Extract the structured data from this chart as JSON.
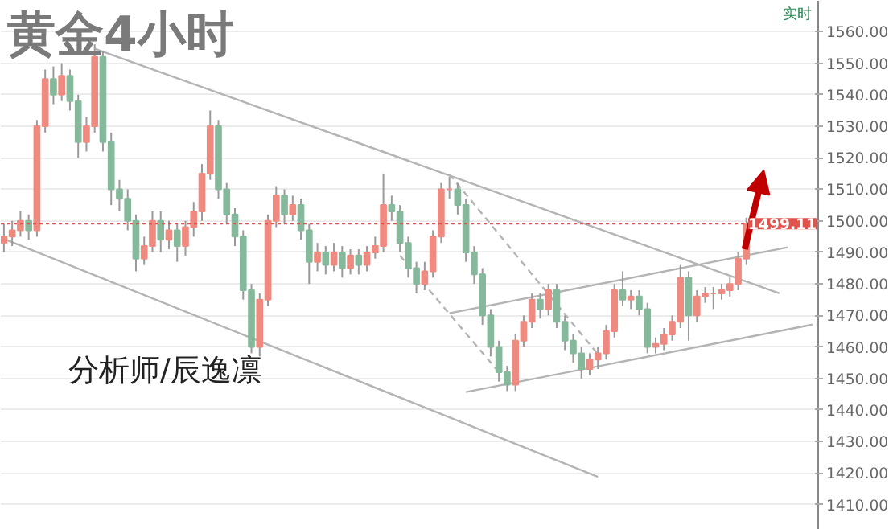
{
  "chart_data": {
    "type": "candlestick",
    "title": "黄金4小时",
    "categories": [
      null,
      null,
      null,
      null,
      null,
      null,
      null,
      null,
      null,
      null,
      null,
      null,
      null,
      null,
      null,
      null,
      null,
      null,
      null,
      null,
      null,
      null,
      null,
      null,
      null,
      null,
      null,
      null,
      null,
      null,
      null,
      null,
      null,
      null,
      null,
      null,
      null,
      null,
      null,
      null,
      null,
      null,
      null,
      null,
      null,
      null,
      null,
      null,
      null,
      null,
      null,
      null,
      null,
      null,
      null,
      null,
      null,
      null,
      null,
      null,
      null,
      null,
      null,
      null,
      null,
      null,
      null,
      null,
      null,
      null,
      null,
      null,
      null,
      null,
      null,
      null,
      null,
      null,
      null,
      null,
      null,
      null,
      null,
      null,
      null,
      null,
      null,
      null,
      null,
      null,
      null,
      null,
      null,
      null,
      null,
      null,
      null,
      null,
      null
    ],
    "ohlc": [
      [
        1493,
        1499,
        1490,
        1495
      ],
      [
        1495,
        1500,
        1492,
        1497
      ],
      [
        1497,
        1503,
        1495,
        1500
      ],
      [
        1500,
        1502,
        1494,
        1497
      ],
      [
        1497,
        1532,
        1495,
        1530
      ],
      [
        1530,
        1548,
        1528,
        1545
      ],
      [
        1545,
        1549,
        1537,
        1540
      ],
      [
        1540,
        1550,
        1538,
        1546
      ],
      [
        1546,
        1548,
        1535,
        1538
      ],
      [
        1538,
        1540,
        1520,
        1525
      ],
      [
        1525,
        1533,
        1522,
        1530
      ],
      [
        1530,
        1556,
        1528,
        1552
      ],
      [
        1552,
        1554,
        1522,
        1525
      ],
      [
        1525,
        1528,
        1505,
        1510
      ],
      [
        1510,
        1513,
        1503,
        1507
      ],
      [
        1507,
        1510,
        1497,
        1500
      ],
      [
        1500,
        1502,
        1484,
        1488
      ],
      [
        1488,
        1495,
        1486,
        1492
      ],
      [
        1492,
        1503,
        1490,
        1500
      ],
      [
        1500,
        1503,
        1490,
        1494
      ],
      [
        1494,
        1500,
        1491,
        1497
      ],
      [
        1497,
        1499,
        1487,
        1492
      ],
      [
        1492,
        1500,
        1489,
        1498
      ],
      [
        1498,
        1506,
        1495,
        1503
      ],
      [
        1503,
        1518,
        1500,
        1515
      ],
      [
        1515,
        1535,
        1513,
        1530
      ],
      [
        1530,
        1532,
        1507,
        1510
      ],
      [
        1510,
        1512,
        1499,
        1502
      ],
      [
        1502,
        1504,
        1492,
        1495
      ],
      [
        1495,
        1497,
        1475,
        1478
      ],
      [
        1478,
        1480,
        1458,
        1460
      ],
      [
        1460,
        1477,
        1457,
        1475
      ],
      [
        1475,
        1502,
        1473,
        1500
      ],
      [
        1500,
        1511,
        1498,
        1508
      ],
      [
        1508,
        1510,
        1499,
        1502
      ],
      [
        1502,
        1508,
        1500,
        1505
      ],
      [
        1505,
        1507,
        1494,
        1497
      ],
      [
        1497,
        1499,
        1480,
        1487
      ],
      [
        1487,
        1493,
        1484,
        1490
      ],
      [
        1490,
        1492,
        1483,
        1486
      ],
      [
        1486,
        1493,
        1484,
        1490
      ],
      [
        1490,
        1492,
        1482,
        1485
      ],
      [
        1485,
        1491,
        1483,
        1489
      ],
      [
        1489,
        1491,
        1483,
        1486
      ],
      [
        1486,
        1492,
        1484,
        1490
      ],
      [
        1490,
        1495,
        1488,
        1492
      ],
      [
        1492,
        1515,
        1490,
        1505
      ],
      [
        1505,
        1508,
        1500,
        1503
      ],
      [
        1503,
        1505,
        1490,
        1493
      ],
      [
        1493,
        1495,
        1482,
        1485
      ],
      [
        1485,
        1487,
        1477,
        1480
      ],
      [
        1480,
        1487,
        1478,
        1484
      ],
      [
        1484,
        1497,
        1482,
        1495
      ],
      [
        1495,
        1512,
        1493,
        1510
      ],
      [
        1510,
        1514,
        1507,
        1510
      ],
      [
        1510,
        1512,
        1502,
        1505
      ],
      [
        1505,
        1507,
        1487,
        1490
      ],
      [
        1490,
        1492,
        1480,
        1483
      ],
      [
        1483,
        1485,
        1467,
        1470
      ],
      [
        1470,
        1472,
        1457,
        1460
      ],
      [
        1460,
        1462,
        1449,
        1452
      ],
      [
        1452,
        1454,
        1446,
        1448
      ],
      [
        1448,
        1464,
        1446,
        1462
      ],
      [
        1462,
        1470,
        1460,
        1468
      ],
      [
        1468,
        1477,
        1466,
        1475
      ],
      [
        1475,
        1477,
        1469,
        1472
      ],
      [
        1472,
        1480,
        1470,
        1478
      ],
      [
        1478,
        1480,
        1466,
        1468
      ],
      [
        1468,
        1470,
        1459,
        1462
      ],
      [
        1462,
        1464,
        1455,
        1458
      ],
      [
        1458,
        1460,
        1450,
        1453
      ],
      [
        1453,
        1458,
        1451,
        1456
      ],
      [
        1456,
        1460,
        1453,
        1458
      ],
      [
        1458,
        1467,
        1456,
        1465
      ],
      [
        1465,
        1480,
        1463,
        1478
      ],
      [
        1478,
        1484,
        1473,
        1475
      ],
      [
        1475,
        1478,
        1472,
        1476
      ],
      [
        1476,
        1478,
        1470,
        1472
      ],
      [
        1472,
        1474,
        1458,
        1460
      ],
      [
        1460,
        1463,
        1458,
        1461
      ],
      [
        1461,
        1466,
        1459,
        1464
      ],
      [
        1464,
        1470,
        1462,
        1468
      ],
      [
        1468,
        1486,
        1466,
        1482
      ],
      [
        1482,
        1484,
        1462,
        1470
      ],
      [
        1470,
        1478,
        1468,
        1476
      ],
      [
        1476,
        1479,
        1474,
        1477
      ],
      [
        1477,
        1479,
        1472,
        1477
      ],
      [
        1477,
        1480,
        1475,
        1478
      ],
      [
        1478,
        1482,
        1476,
        1480
      ],
      [
        1480,
        1490,
        1478,
        1488
      ],
      [
        1488,
        1501,
        1486,
        1499
      ],
      null,
      null,
      null,
      null,
      null,
      null,
      null,
      null
    ],
    "series": [
      {
        "type": "line",
        "color": "#b4b4b4",
        "values": [
          null,
          null,
          null,
          null,
          null,
          null,
          null,
          null,
          null,
          null,
          null,
          1554.6,
          null,
          null,
          null,
          null,
          null,
          null,
          null,
          null,
          null,
          null,
          null,
          null,
          null,
          null,
          null,
          null,
          null,
          null,
          null,
          null,
          null,
          null,
          null,
          null,
          null,
          null,
          null,
          null,
          null,
          null,
          null,
          null,
          null,
          null,
          null,
          null,
          null,
          null,
          null,
          null,
          null,
          null,
          null,
          null,
          null,
          null,
          null,
          null,
          null,
          null,
          null,
          null,
          null,
          null,
          null,
          null,
          null,
          null,
          null,
          null,
          null,
          null,
          null,
          null,
          null,
          null,
          null,
          null,
          null,
          null,
          null,
          null,
          null,
          null,
          null,
          null,
          null,
          null,
          null,
          null,
          null,
          null,
          1477,
          null,
          null,
          null,
          null
        ]
      },
      {
        "type": "line",
        "color": "#b4b4b4",
        "values": [
          1494.3,
          null,
          null,
          null,
          null,
          null,
          null,
          null,
          null,
          null,
          null,
          null,
          null,
          null,
          null,
          null,
          null,
          null,
          null,
          null,
          null,
          null,
          null,
          null,
          null,
          null,
          null,
          null,
          null,
          null,
          null,
          null,
          null,
          null,
          null,
          null,
          null,
          null,
          null,
          null,
          null,
          null,
          null,
          null,
          null,
          null,
          null,
          null,
          null,
          null,
          null,
          null,
          null,
          null,
          null,
          null,
          null,
          null,
          null,
          null,
          null,
          null,
          null,
          null,
          null,
          null,
          null,
          null,
          null,
          null,
          null,
          null,
          1418.8,
          null,
          null,
          null,
          null,
          null,
          null,
          null,
          null,
          null,
          null,
          null,
          null,
          null,
          null,
          null,
          null,
          null,
          null,
          null,
          null,
          null,
          null,
          null,
          null,
          null,
          null
        ]
      },
      {
        "type": "line",
        "color": "#b4b4b4",
        "values": [
          null,
          null,
          null,
          null,
          null,
          null,
          null,
          null,
          null,
          null,
          null,
          null,
          null,
          null,
          null,
          null,
          null,
          null,
          null,
          null,
          null,
          null,
          null,
          null,
          null,
          null,
          null,
          null,
          null,
          null,
          null,
          null,
          null,
          null,
          null,
          null,
          null,
          null,
          null,
          null,
          null,
          null,
          null,
          null,
          null,
          null,
          null,
          null,
          null,
          null,
          null,
          null,
          null,
          null,
          1470.7,
          null,
          null,
          null,
          null,
          null,
          null,
          null,
          null,
          null,
          null,
          null,
          null,
          null,
          null,
          null,
          null,
          null,
          null,
          null,
          null,
          null,
          null,
          null,
          null,
          null,
          null,
          null,
          null,
          null,
          null,
          null,
          null,
          null,
          null,
          null,
          null,
          null,
          null,
          null,
          null,
          1491.6,
          null,
          null,
          null
        ]
      },
      {
        "type": "line",
        "color": "#b4b4b4",
        "values": [
          null,
          null,
          null,
          null,
          null,
          null,
          null,
          null,
          null,
          null,
          null,
          null,
          null,
          null,
          null,
          null,
          null,
          null,
          null,
          null,
          null,
          null,
          null,
          null,
          null,
          null,
          null,
          null,
          null,
          null,
          null,
          null,
          null,
          null,
          null,
          null,
          null,
          null,
          null,
          null,
          null,
          null,
          null,
          null,
          null,
          null,
          null,
          null,
          null,
          null,
          null,
          null,
          null,
          null,
          null,
          null,
          1445.7,
          null,
          null,
          null,
          null,
          null,
          null,
          null,
          null,
          null,
          null,
          null,
          null,
          null,
          null,
          null,
          null,
          null,
          null,
          null,
          null,
          null,
          null,
          null,
          null,
          null,
          null,
          null,
          null,
          null,
          null,
          null,
          null,
          null,
          null,
          null,
          null,
          null,
          null,
          null,
          null,
          null,
          1467.1
        ]
      },
      {
        "type": "line",
        "color": "#b4b4b4",
        "line_style": "dashed",
        "values": [
          null,
          null,
          null,
          null,
          null,
          null,
          null,
          null,
          null,
          null,
          null,
          null,
          null,
          null,
          null,
          null,
          null,
          null,
          null,
          null,
          null,
          null,
          null,
          null,
          null,
          null,
          null,
          null,
          null,
          null,
          null,
          null,
          null,
          null,
          null,
          null,
          null,
          null,
          null,
          null,
          null,
          null,
          null,
          null,
          null,
          null,
          null,
          null,
          null,
          null,
          null,
          null,
          null,
          null,
          1514.8,
          null,
          null,
          null,
          null,
          null,
          null,
          null,
          null,
          null,
          null,
          null,
          null,
          null,
          null,
          null,
          null,
          null,
          1457.7,
          null,
          null,
          null,
          null,
          null,
          null,
          null,
          null,
          null,
          null,
          null,
          null,
          null,
          null,
          null,
          null,
          null,
          null,
          null,
          null,
          null,
          null,
          null,
          null,
          null,
          null
        ]
      },
      {
        "type": "line",
        "color": "#b4b4b4",
        "line_style": "dashed",
        "values": [
          null,
          null,
          null,
          null,
          null,
          null,
          null,
          null,
          null,
          null,
          null,
          null,
          null,
          null,
          null,
          null,
          null,
          null,
          null,
          null,
          null,
          null,
          null,
          null,
          null,
          null,
          null,
          null,
          null,
          null,
          null,
          null,
          null,
          null,
          null,
          null,
          null,
          null,
          null,
          null,
          null,
          null,
          null,
          null,
          null,
          null,
          null,
          null,
          1489,
          null,
          null,
          null,
          null,
          null,
          null,
          null,
          null,
          null,
          null,
          null,
          1452,
          null,
          null,
          null,
          null,
          null,
          null,
          null,
          null,
          null,
          null,
          null,
          null,
          null,
          null,
          null,
          null,
          null,
          null,
          null,
          null,
          null,
          null,
          null,
          null,
          null,
          null,
          null,
          null,
          null,
          null,
          null,
          null,
          null,
          null,
          null,
          null,
          null,
          null
        ]
      }
    ],
    "ylim": [
      1402,
      1569.8
    ],
    "yticks": [
      {
        "value": 1410,
        "label": "1410.00"
      },
      {
        "value": 1420,
        "label": "1420.00"
      },
      {
        "value": 1430,
        "label": "1430.00"
      },
      {
        "value": 1440,
        "label": "1440.00"
      },
      {
        "value": 1450,
        "label": "1450.00"
      },
      {
        "value": 1460,
        "label": "1460.00"
      },
      {
        "value": 1470,
        "label": "1470.00"
      },
      {
        "value": 1480,
        "label": "1480.00"
      },
      {
        "value": 1490,
        "label": "1490.00"
      },
      {
        "value": 1500,
        "label": "1500.00"
      },
      {
        "value": 1510,
        "label": "1510.00"
      },
      {
        "value": 1520,
        "label": "1520.00"
      },
      {
        "value": 1530,
        "label": "1530.00"
      },
      {
        "value": 1540,
        "label": "1540.00"
      },
      {
        "value": 1550,
        "label": "1550.00"
      },
      {
        "value": 1560,
        "label": "1560.00"
      }
    ],
    "ref_lines": [
      {
        "axis": "y",
        "value": 1499.11,
        "label": "1499.11",
        "color": "#e0524a",
        "line_style": "dotted"
      }
    ],
    "annotations": [
      "分析师/辰逸凛",
      "实时"
    ],
    "grid": "y",
    "tick_labels": "y"
  }
}
